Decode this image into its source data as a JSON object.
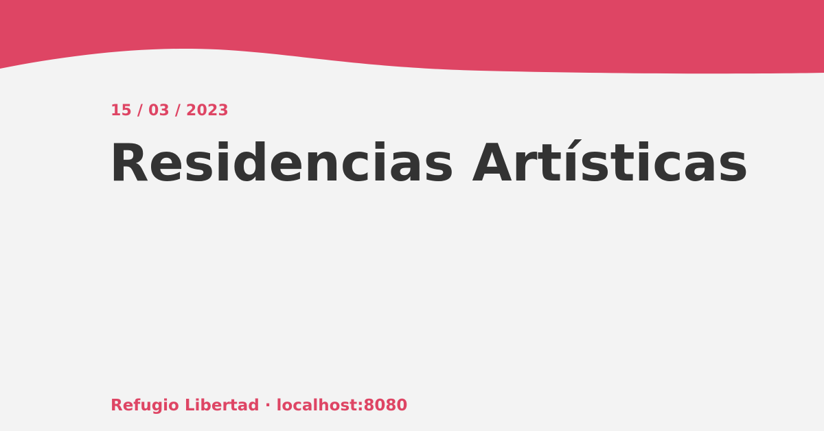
{
  "colors": {
    "accent": "#de4564",
    "background": "#f3f3f3",
    "title_text": "#333333"
  },
  "card": {
    "date": "15 / 03 / 2023",
    "title": "Residencias Artísticas",
    "footer": {
      "site_name": "Refugio Libertad",
      "separator": " · ",
      "host": "localhost:8080"
    }
  }
}
